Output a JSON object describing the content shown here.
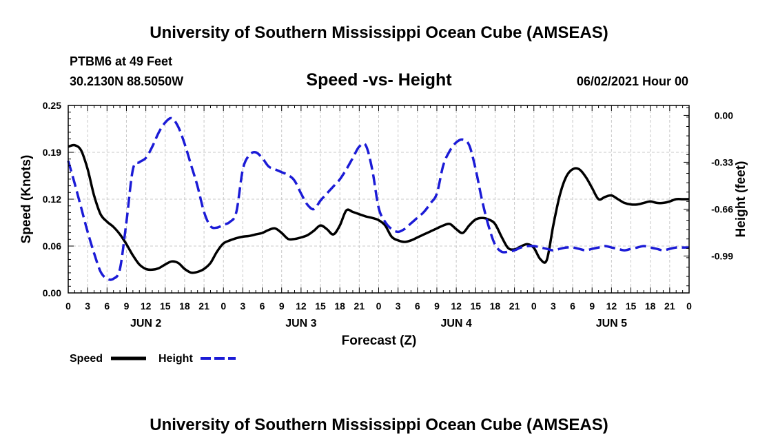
{
  "header": {
    "title_top": "University of Southern Mississippi Ocean Cube (AMSEAS)",
    "station": "PTBM6 at 49 Feet",
    "coords": "30.2130N  88.5050W",
    "chart_title": "Speed -vs- Height",
    "datetime": "06/02/2021 Hour 00",
    "title_bottom": "University of Southern Mississippi Ocean Cube (AMSEAS)"
  },
  "chart_data": {
    "type": "line",
    "title": "Speed -vs- Height",
    "xlabel": "Forecast (Z)",
    "ylabel_left": "Speed (Knots)",
    "ylabel_right": "Height (feet)",
    "x_range_hours": [
      0,
      96
    ],
    "x_tick_labels": [
      "0",
      "3",
      "6",
      "9",
      "12",
      "15",
      "18",
      "21",
      "0",
      "3",
      "6",
      "9",
      "12",
      "15",
      "18",
      "21",
      "0",
      "3",
      "6",
      "9",
      "12",
      "15",
      "18",
      "21",
      "0",
      "3",
      "6",
      "9",
      "12",
      "15",
      "18",
      "21",
      "0"
    ],
    "day_labels": [
      {
        "label": "JUN 2",
        "hour": 12
      },
      {
        "label": "JUN 3",
        "hour": 36
      },
      {
        "label": "JUN 4",
        "hour": 60
      },
      {
        "label": "JUN 5",
        "hour": 84
      }
    ],
    "ylim_left": [
      0,
      0.25
    ],
    "yticks_left": [
      "0.00",
      "0.06",
      "0.12",
      "0.19",
      "0.25"
    ],
    "ylim_right": [
      -1.25,
      0.07
    ],
    "yticks_right": [
      "0.00",
      "-0.33",
      "-0.66",
      "-0.99"
    ],
    "grid": true,
    "series": [
      {
        "name": "Speed",
        "color": "#000000",
        "axis": "left",
        "x": [
          0,
          1,
          2,
          3,
          4,
          5,
          6,
          7,
          8,
          9,
          10,
          11,
          12,
          13,
          14,
          15,
          16,
          17,
          18,
          19,
          20,
          21,
          22,
          23,
          24,
          25,
          26,
          27,
          28,
          29,
          30,
          31,
          32,
          33,
          34,
          35,
          36,
          37,
          38,
          39,
          40,
          41,
          42,
          43,
          44,
          45,
          46,
          47,
          48,
          49,
          50,
          51,
          52,
          53,
          54,
          55,
          56,
          57,
          58,
          59,
          60,
          61,
          62,
          63,
          64,
          65,
          66,
          67,
          68,
          69,
          70,
          71,
          72,
          73,
          74,
          75,
          76,
          77,
          78,
          79,
          80,
          81,
          82,
          83,
          84,
          85,
          86,
          87,
          88,
          89,
          90,
          91,
          92,
          93,
          94,
          95,
          96
        ],
        "values": [
          0.195,
          0.197,
          0.19,
          0.165,
          0.13,
          0.105,
          0.095,
          0.088,
          0.078,
          0.065,
          0.05,
          0.038,
          0.032,
          0.031,
          0.033,
          0.038,
          0.042,
          0.04,
          0.032,
          0.027,
          0.028,
          0.032,
          0.04,
          0.055,
          0.066,
          0.07,
          0.073,
          0.075,
          0.076,
          0.078,
          0.08,
          0.084,
          0.086,
          0.08,
          0.072,
          0.072,
          0.074,
          0.077,
          0.083,
          0.09,
          0.085,
          0.078,
          0.09,
          0.11,
          0.108,
          0.105,
          0.102,
          0.1,
          0.097,
          0.09,
          0.075,
          0.07,
          0.068,
          0.07,
          0.074,
          0.078,
          0.082,
          0.086,
          0.09,
          0.092,
          0.085,
          0.08,
          0.09,
          0.098,
          0.1,
          0.098,
          0.092,
          0.075,
          0.06,
          0.058,
          0.062,
          0.065,
          0.06,
          0.045,
          0.044,
          0.09,
          0.13,
          0.155,
          0.165,
          0.165,
          0.155,
          0.14,
          0.125,
          0.128,
          0.13,
          0.125,
          0.12,
          0.118,
          0.118,
          0.12,
          0.122,
          0.12,
          0.12,
          0.122,
          0.125,
          0.125,
          0.125
        ]
      },
      {
        "name": "Height",
        "color": "#1b1bd6",
        "axis": "right",
        "x": [
          0,
          1,
          2,
          3,
          4,
          5,
          6,
          7,
          8,
          9,
          10,
          11,
          12,
          13,
          14,
          15,
          16,
          17,
          18,
          19,
          20,
          21,
          22,
          23,
          24,
          25,
          26,
          27,
          28,
          29,
          30,
          31,
          32,
          33,
          34,
          35,
          36,
          37,
          38,
          39,
          40,
          41,
          42,
          43,
          44,
          45,
          46,
          47,
          48,
          49,
          50,
          51,
          52,
          53,
          54,
          55,
          56,
          57,
          58,
          59,
          60,
          61,
          62,
          63,
          64,
          65,
          66,
          67,
          68,
          69,
          70,
          71,
          72,
          73,
          74,
          75,
          76,
          77,
          78,
          79,
          80,
          81,
          82,
          83,
          84,
          85,
          86,
          87,
          88,
          89,
          90,
          91,
          92,
          93,
          94,
          95,
          96
        ],
        "values": [
          -0.32,
          -0.48,
          -0.65,
          -0.82,
          -0.97,
          -1.1,
          -1.15,
          -1.15,
          -1.08,
          -0.75,
          -0.38,
          -0.33,
          -0.3,
          -0.22,
          -0.12,
          -0.05,
          -0.02,
          -0.08,
          -0.2,
          -0.35,
          -0.5,
          -0.68,
          -0.78,
          -0.79,
          -0.77,
          -0.75,
          -0.68,
          -0.38,
          -0.28,
          -0.26,
          -0.3,
          -0.36,
          -0.38,
          -0.4,
          -0.42,
          -0.46,
          -0.55,
          -0.63,
          -0.66,
          -0.6,
          -0.55,
          -0.5,
          -0.45,
          -0.38,
          -0.3,
          -0.22,
          -0.21,
          -0.38,
          -0.65,
          -0.75,
          -0.8,
          -0.82,
          -0.8,
          -0.76,
          -0.72,
          -0.68,
          -0.62,
          -0.55,
          -0.35,
          -0.25,
          -0.19,
          -0.17,
          -0.21,
          -0.38,
          -0.6,
          -0.78,
          -0.91,
          -0.96,
          -0.96,
          -0.95,
          -0.93,
          -0.92,
          -0.92,
          -0.93,
          -0.94,
          -0.95,
          -0.94,
          -0.93,
          -0.93,
          -0.94,
          -0.95,
          -0.94,
          -0.93,
          -0.92,
          -0.93,
          -0.94,
          -0.95,
          -0.94,
          -0.93,
          -0.92,
          -0.93,
          -0.94,
          -0.95,
          -0.94,
          -0.93,
          -0.93,
          -0.93
        ]
      }
    ]
  },
  "legend": {
    "speed_label": "Speed",
    "height_label": "Height"
  }
}
